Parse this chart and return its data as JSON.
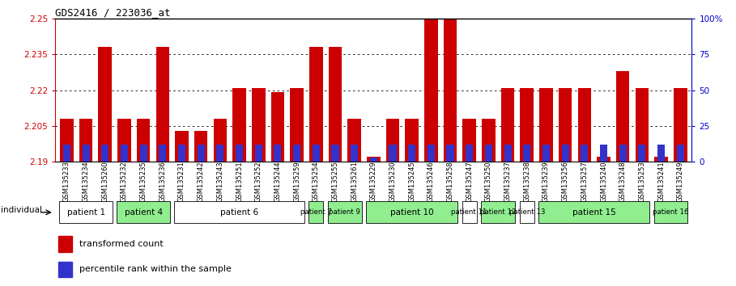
{
  "title": "GDS2416 / 223036_at",
  "samples": [
    "GSM135233",
    "GSM135234",
    "GSM135260",
    "GSM135232",
    "GSM135235",
    "GSM135236",
    "GSM135231",
    "GSM135242",
    "GSM135243",
    "GSM135251",
    "GSM135252",
    "GSM135244",
    "GSM135259",
    "GSM135254",
    "GSM135255",
    "GSM135261",
    "GSM135229",
    "GSM135230",
    "GSM135245",
    "GSM135246",
    "GSM135258",
    "GSM135247",
    "GSM135250",
    "GSM135237",
    "GSM135238",
    "GSM135239",
    "GSM135256",
    "GSM135257",
    "GSM135240",
    "GSM135248",
    "GSM135253",
    "GSM135241",
    "GSM135249"
  ],
  "red_values": [
    2.208,
    2.208,
    2.238,
    2.208,
    2.208,
    2.238,
    2.203,
    2.203,
    2.208,
    2.221,
    2.221,
    2.219,
    2.221,
    2.238,
    2.238,
    2.208,
    2.192,
    2.208,
    2.208,
    2.25,
    2.25,
    2.208,
    2.208,
    2.221,
    2.221,
    2.221,
    2.221,
    2.221,
    2.192,
    2.228,
    2.221,
    2.192,
    2.221
  ],
  "blue_pct": [
    12,
    12,
    12,
    12,
    12,
    12,
    12,
    12,
    12,
    12,
    12,
    12,
    12,
    12,
    12,
    12,
    3,
    12,
    12,
    12,
    12,
    12,
    12,
    12,
    12,
    12,
    12,
    12,
    12,
    12,
    12,
    12,
    12
  ],
  "ymin": 2.19,
  "ymax": 2.25,
  "yticks": [
    2.19,
    2.205,
    2.22,
    2.235,
    2.25
  ],
  "ytick_labels": [
    "2.19",
    "2.205",
    "2.22",
    "2.235",
    "2.25"
  ],
  "right_yticks": [
    0,
    25,
    50,
    75,
    100
  ],
  "right_ytick_labels": [
    "0",
    "25",
    "50",
    "75",
    "100%"
  ],
  "patients": [
    {
      "label": "patient 1",
      "start": 0,
      "end": 2,
      "color": "#ffffff"
    },
    {
      "label": "patient 4",
      "start": 3,
      "end": 5,
      "color": "#90EE90"
    },
    {
      "label": "patient 6",
      "start": 6,
      "end": 12,
      "color": "#ffffff"
    },
    {
      "label": "patient 7",
      "start": 13,
      "end": 13,
      "color": "#90EE90"
    },
    {
      "label": "patient 9",
      "start": 14,
      "end": 15,
      "color": "#90EE90"
    },
    {
      "label": "patient 10",
      "start": 16,
      "end": 20,
      "color": "#90EE90"
    },
    {
      "label": "patient 11",
      "start": 21,
      "end": 21,
      "color": "#ffffff"
    },
    {
      "label": "patient 12",
      "start": 22,
      "end": 23,
      "color": "#90EE90"
    },
    {
      "label": "patient 13",
      "start": 24,
      "end": 24,
      "color": "#ffffff"
    },
    {
      "label": "patient 15",
      "start": 25,
      "end": 30,
      "color": "#90EE90"
    },
    {
      "label": "patient 16",
      "start": 31,
      "end": 32,
      "color": "#90EE90"
    }
  ],
  "bar_width": 0.7,
  "red_color": "#CC0000",
  "blue_color": "#3333CC",
  "left_tick_color": "#CC0000",
  "right_tick_color": "#0000CC",
  "individual_label": "individual",
  "legend_red": "transformed count",
  "legend_blue": "percentile rank within the sample"
}
